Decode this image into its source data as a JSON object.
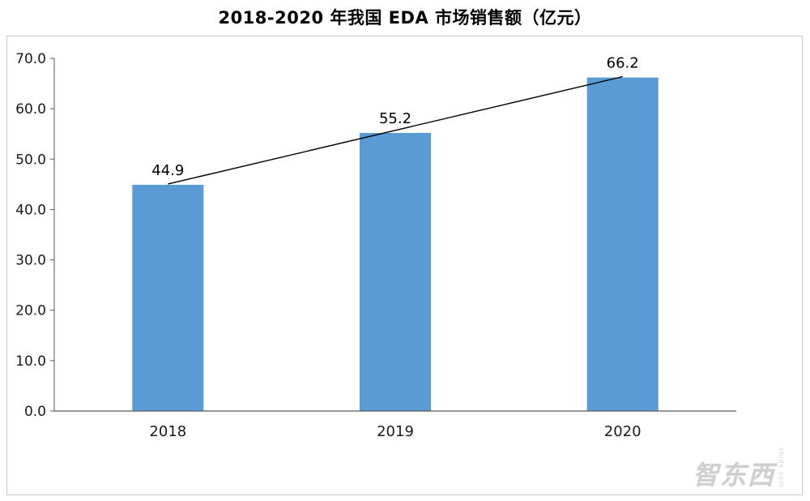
{
  "chart_data": {
    "type": "bar",
    "title": "2018-2020 年我国 EDA 市场销售额（亿元）",
    "categories": [
      "2018",
      "2019",
      "2020"
    ],
    "values": [
      44.9,
      55.2,
      66.2
    ],
    "data_labels": [
      "44.9",
      "55.2",
      "66.2"
    ],
    "xlabel": "",
    "ylabel": "",
    "ylim": [
      0,
      70
    ],
    "y_tick_values": [
      0,
      10,
      20,
      30,
      40,
      50,
      60,
      70
    ],
    "y_tick_labels": [
      "0.0",
      "10.0",
      "20.0",
      "30.0",
      "40.0",
      "50.0",
      "60.0",
      "70.0"
    ],
    "grid": false,
    "legend_position": "none",
    "bar_color": "#5b9bd5",
    "axis_color": "#595959",
    "trendline": {
      "from_index": 0,
      "to_index": 2,
      "color": "#000000"
    }
  },
  "watermark": {
    "text": "智东西",
    "subtext": "zhidx.com"
  }
}
